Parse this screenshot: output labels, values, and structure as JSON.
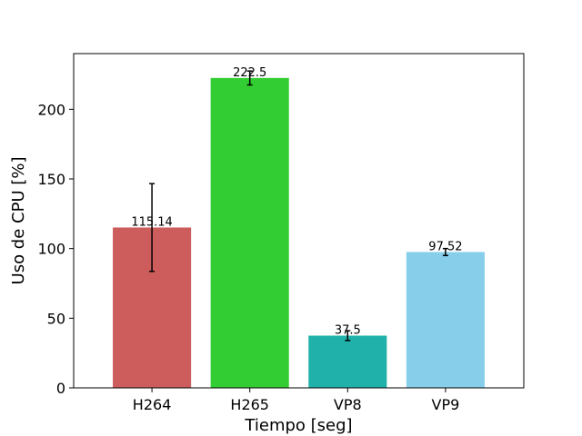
{
  "chart_data": {
    "type": "bar",
    "categories": [
      "H264",
      "H265",
      "VP8",
      "VP9"
    ],
    "values": [
      115.14,
      222.5,
      37.5,
      97.52
    ],
    "errors": [
      31.5,
      5.0,
      3.5,
      2.5
    ],
    "data_labels": [
      "115.14",
      "222.5",
      "37.5",
      "97.52"
    ],
    "colors": [
      "#cd5c5c",
      "#32cd32",
      "#20b2aa",
      "#87ceeb"
    ],
    "xlabel": "Tiempo [seg]",
    "ylabel": "Uso de CPU [%]",
    "ylim": [
      0,
      240
    ],
    "yticks": [
      0,
      50,
      100,
      150,
      200
    ],
    "ytick_labels": [
      "0",
      "50",
      "100",
      "150",
      "200"
    ],
    "grid": false,
    "error_bar_color": "#000000"
  }
}
